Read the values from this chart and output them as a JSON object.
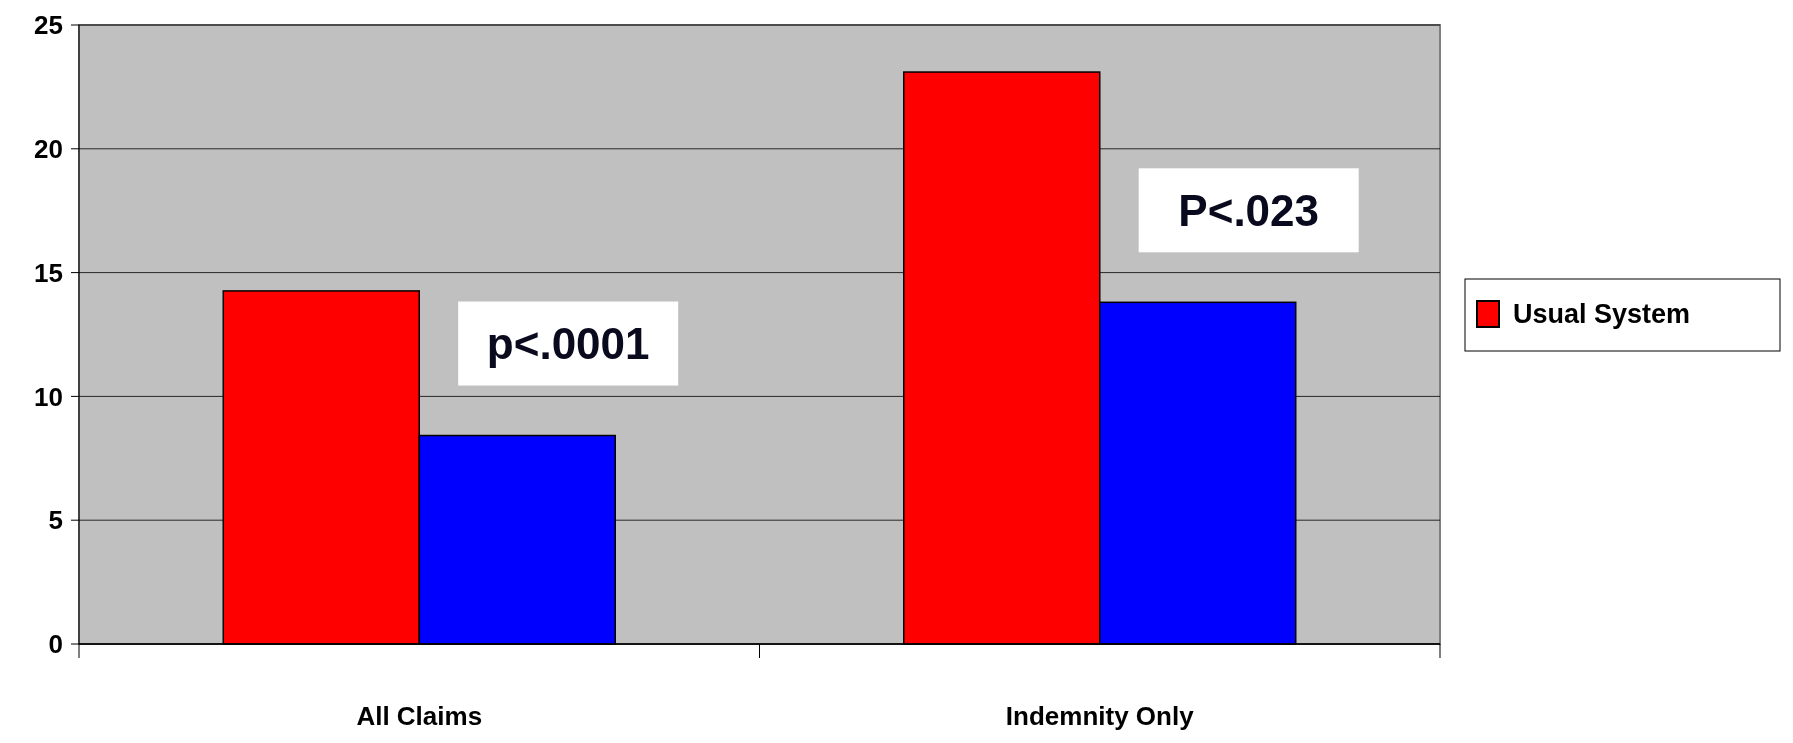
{
  "chart_data": {
    "type": "bar",
    "categories": [
      "All Claims",
      "Indemnity Only"
    ],
    "series": [
      {
        "name": "Usual System",
        "color": "#ff0000",
        "values": [
          14.26,
          23.1
        ]
      },
      {
        "color": "#0000ff",
        "values": [
          8.42,
          13.8
        ]
      }
    ],
    "ylim": [
      0,
      25
    ],
    "yticks": [
      0,
      5,
      10,
      15,
      20,
      25
    ],
    "grid": "y",
    "legend": "right",
    "annotations": [
      "p<.0001",
      "P<.023"
    ]
  }
}
